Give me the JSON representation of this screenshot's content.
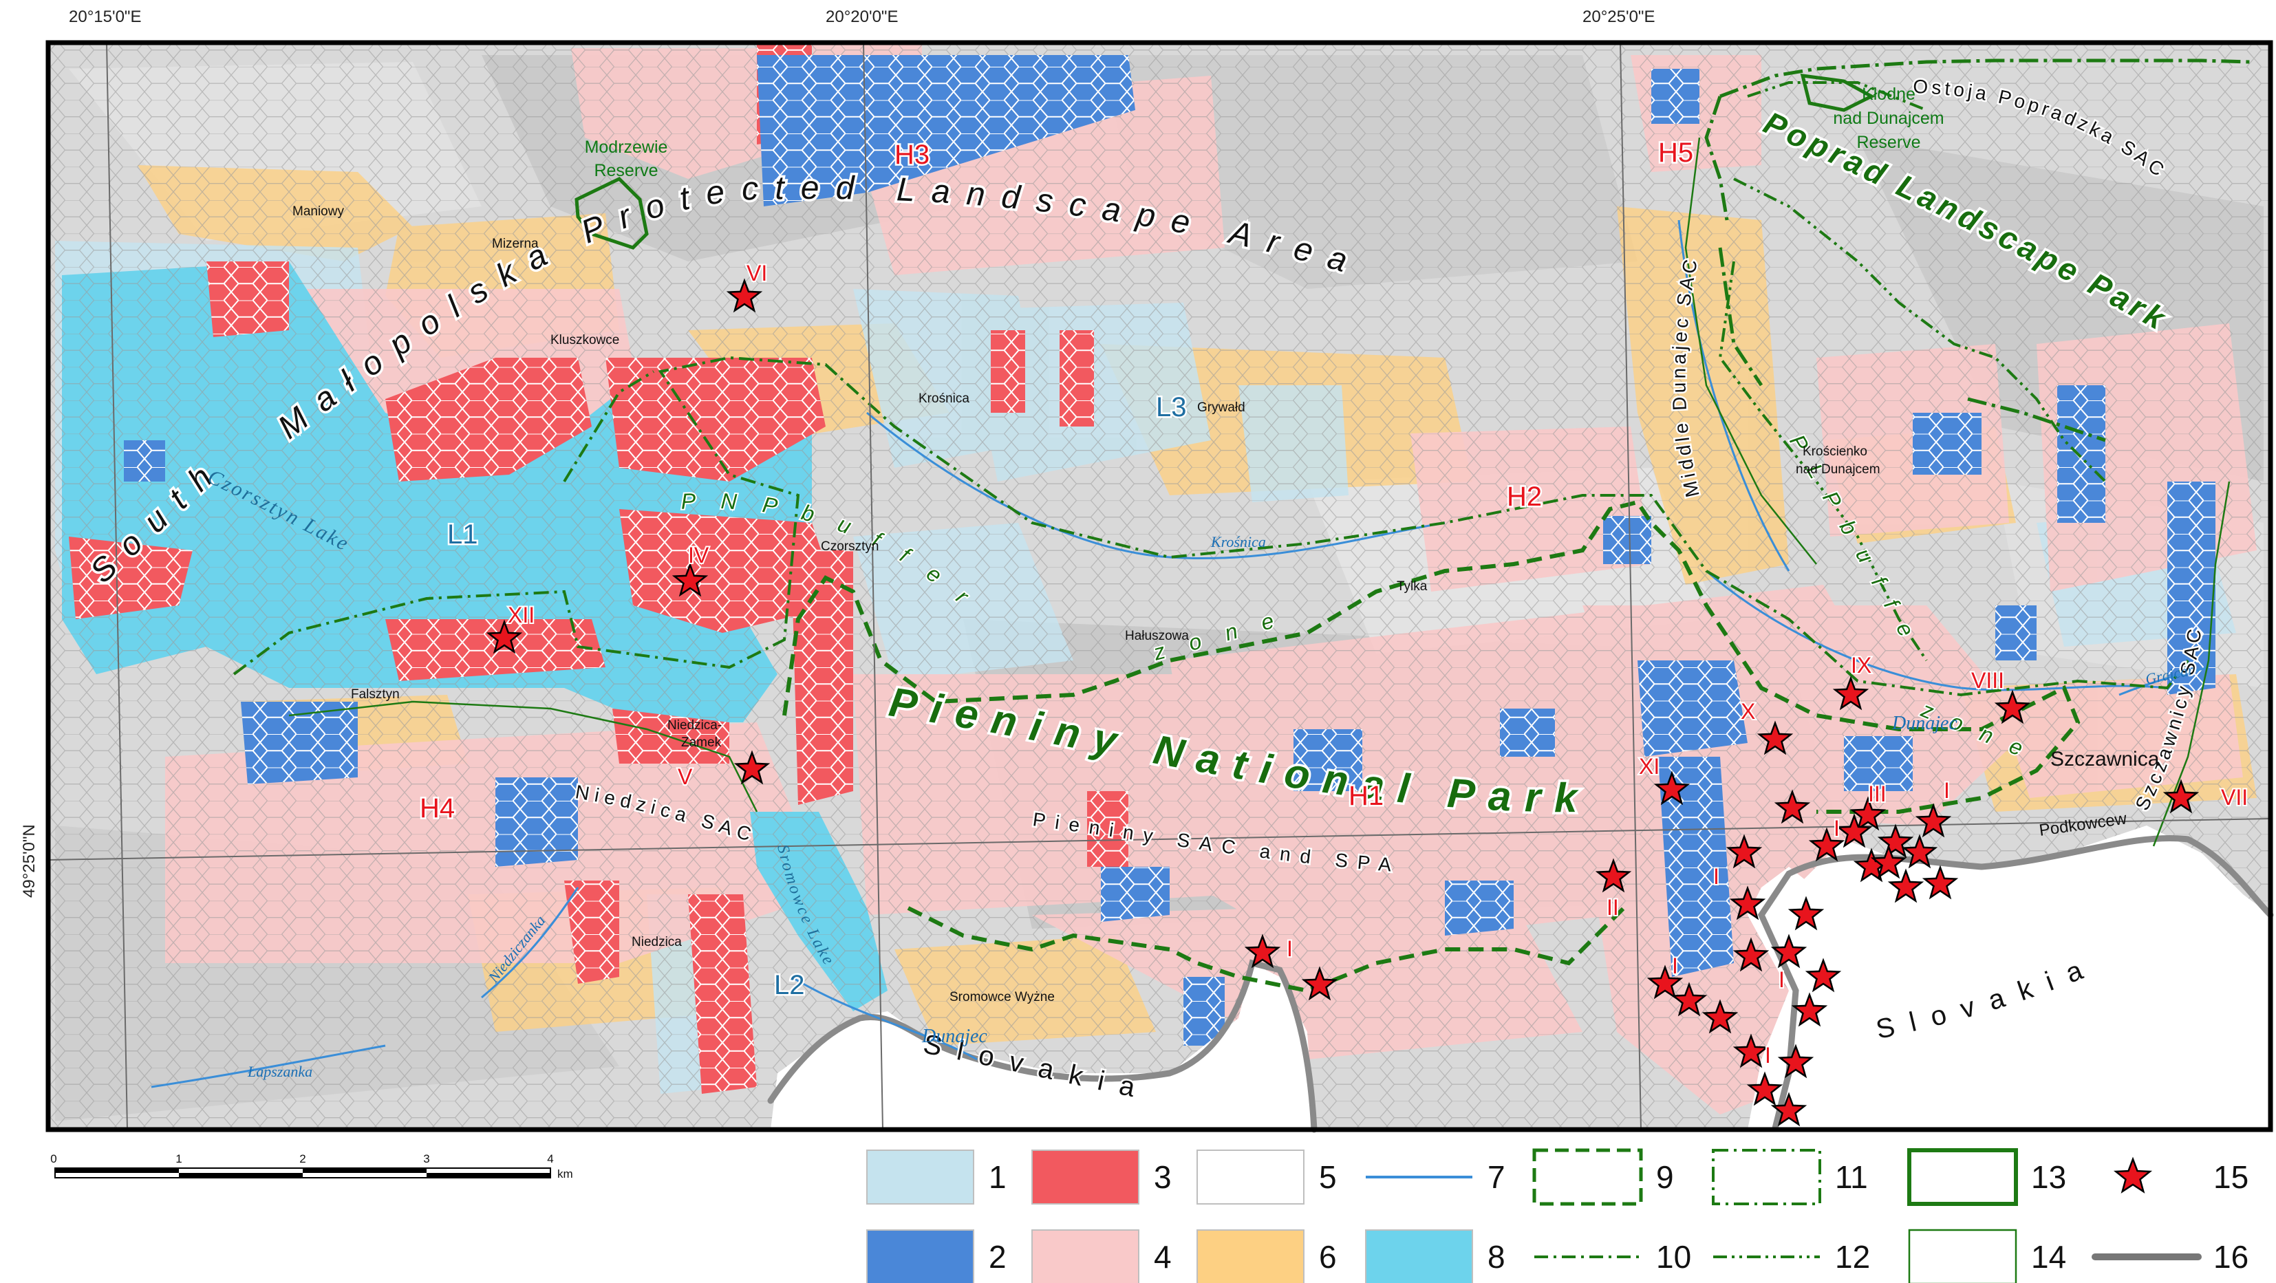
{
  "coords": {
    "top": [
      "20°15'0\"E",
      "20°20'0\"E",
      "20°25'0\"E"
    ],
    "left": "49°25'0\"N"
  },
  "protected_areas": {
    "pla_south": "South",
    "pla_main": "Małopolska Protected Landscape Area",
    "park_pieniny": "Pieniny National Park",
    "pieniny_sac": "Pieniny SAC and SPA",
    "poprad_park": "Poprad Landscape Park",
    "ostoja": "Ostoja Popradzka SAC",
    "middle_dunajec": "Middle Dunajec SAC",
    "szczawnicy": "Szczawnicy SAC",
    "niedzica_sac": "Niedzica SAC",
    "pnp_buffer": "P N P   b u f f e r",
    "pnp_zone": "z o n e",
    "plp_buffer": "P L P   b u f f e r",
    "plp_zone": "z o n e",
    "slovakia_1": "S l o v a k i a",
    "slovakia_2": "S l o v a k i a"
  },
  "reserves": {
    "modrzewie": [
      "Modrzewie",
      "Reserve"
    ],
    "klodne": [
      "Kłodne",
      "nad Dunajcem",
      "Reserve"
    ]
  },
  "area_labels": {
    "H1": "H1",
    "H2": "H2",
    "H3": "H3",
    "H4": "H4",
    "H5": "H5",
    "L1": "L1",
    "L2": "L2",
    "L3": "L3"
  },
  "places": {
    "maniowy": "Maniowy",
    "mizerna": "Mizerna",
    "kluszkowce": "Kluszkowce",
    "krosnica": "Krośnica",
    "grywald": "Grywałd",
    "czorsztyn": "Czorsztyn",
    "haluszowa": "Hałuszowa",
    "tylka": "Tylka",
    "kroscienko": [
      "Krościenko",
      "nad Dunajcem"
    ],
    "falsztyn": "Falsztyn",
    "niedzica_zamek": [
      "Niedzica-",
      "Zamek"
    ],
    "niedzica": "Niedzica",
    "sromowce": "Sromowce Wyżne",
    "szczawnica": "Szczawnica",
    "podkowcew": "Podkowcew"
  },
  "water": {
    "czorsztyn_lake": "Czorsztyn Lake",
    "sromowce_lake": "Sromowce Lake",
    "dunajec_1": "Dunajec",
    "dunajec_2": "Dunajec",
    "krosnica_river": "Krośnica",
    "niedziczanka": "Niedziczanka",
    "lapszanka": "Łapszanka",
    "grajcar": "Grajcar"
  },
  "sites": {
    "VI": "VI",
    "IV": "IV",
    "XII": "XII",
    "V": "V",
    "I": "I",
    "II": "II",
    "XI": "XI",
    "X": "X",
    "IX": "IX",
    "VIII": "VIII",
    "III": "III",
    "VII": "VII"
  },
  "scale_bar": {
    "ticks": [
      "0",
      "1",
      "2",
      "3",
      "4"
    ],
    "unit": "km"
  },
  "legend": {
    "items": [
      {
        "label": "1",
        "kind": "fill",
        "color": "#c5e3ee"
      },
      {
        "label": "2",
        "kind": "fill",
        "color": "#4a87d8"
      },
      {
        "label": "3",
        "kind": "fill",
        "color": "#f2595f"
      },
      {
        "label": "4",
        "kind": "fill",
        "color": "#f9c9c9"
      },
      {
        "label": "5",
        "kind": "fill",
        "color": "#ffffff"
      },
      {
        "label": "6",
        "kind": "fill",
        "color": "#fdd083"
      },
      {
        "label": "7",
        "kind": "river",
        "color": "#3a8ed8"
      },
      {
        "label": "8",
        "kind": "fill",
        "color": "#6dd3ec"
      },
      {
        "label": "9",
        "kind": "dashed-box",
        "color": "#1d7a13"
      },
      {
        "label": "10",
        "kind": "dashdot-line",
        "color": "#1d7a13"
      },
      {
        "label": "11",
        "kind": "dashdot-box",
        "color": "#1d7a13"
      },
      {
        "label": "12",
        "kind": "dashdotdot-line",
        "color": "#1d7a13"
      },
      {
        "label": "13",
        "kind": "thick-box",
        "color": "#1d7a13"
      },
      {
        "label": "14",
        "kind": "thin-box",
        "color": "#1d7a13"
      },
      {
        "label": "15",
        "kind": "star",
        "color": "#e8141d"
      },
      {
        "label": "16",
        "kind": "border",
        "color": "#777777"
      }
    ]
  },
  "colors": {
    "low_light": "#c5e3ee",
    "low_dark": "#4a87d8",
    "high_dark": "#f2595f",
    "high_light": "#f9c9c9",
    "water": "#6dd3ec",
    "settlement": "#fdd083",
    "boundary_green": "#1d7a13",
    "star_red": "#e8141d"
  }
}
